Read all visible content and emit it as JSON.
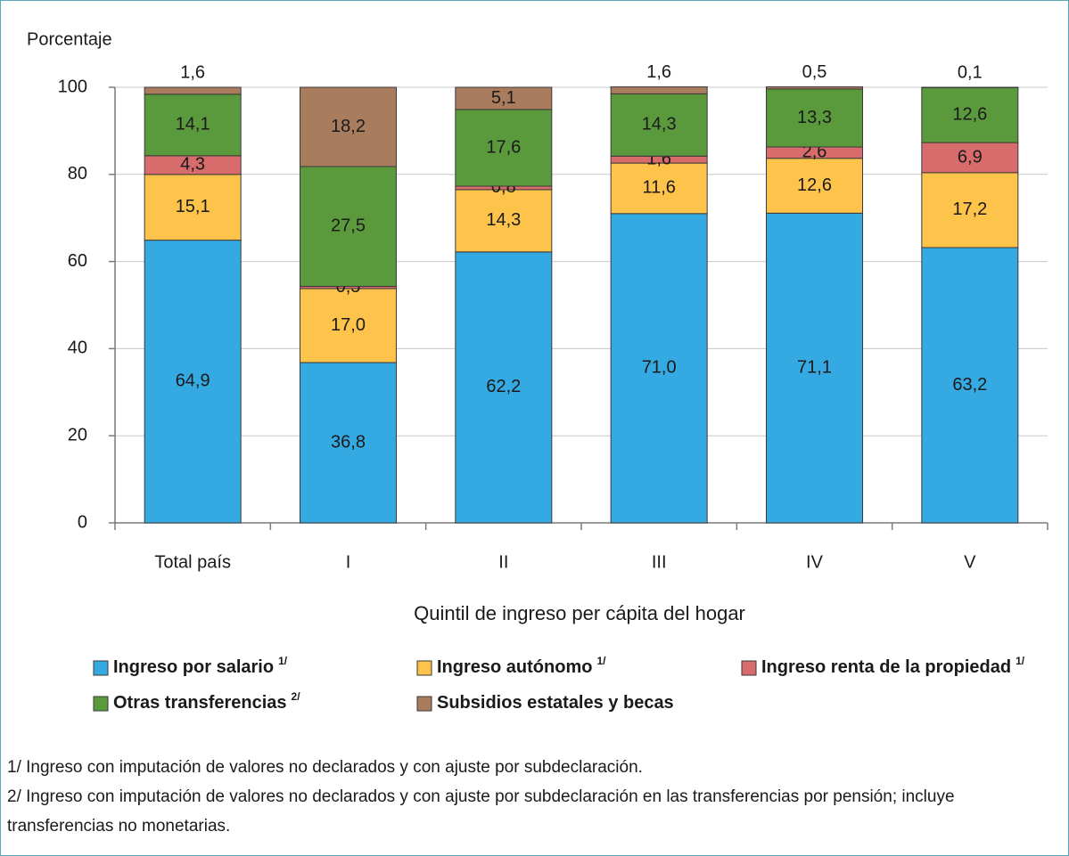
{
  "chart_data": {
    "type": "stacked_bar",
    "ylabel": "Porcentaje",
    "xlabel": "Quintil de ingreso per cápita del hogar",
    "categories": [
      "Total país",
      "I",
      "II",
      "III",
      "IV",
      "V"
    ],
    "ylim": [
      0,
      100
    ],
    "yticks": [
      0,
      20,
      40,
      60,
      80,
      100
    ],
    "grid": true,
    "series": [
      {
        "name": "Ingreso por salario",
        "superscript": "1/",
        "color": "#35a9e1",
        "values": [
          64.9,
          36.8,
          62.2,
          71.0,
          71.1,
          63.2
        ],
        "value_labels": [
          "64,9",
          "36,8",
          "62,2",
          "71,0",
          "71,1",
          "63,2"
        ]
      },
      {
        "name": "Ingreso autónomo",
        "superscript": "1/",
        "color": "#fdc34a",
        "values": [
          15.1,
          17.0,
          14.3,
          11.6,
          12.6,
          17.2
        ],
        "value_labels": [
          "15,1",
          "17,0",
          "14,3",
          "11,6",
          "12,6",
          "17,2"
        ]
      },
      {
        "name": "Ingreso renta de la propiedad",
        "superscript": "1/",
        "color": "#d86b6b",
        "values": [
          4.3,
          0.5,
          0.8,
          1.6,
          2.6,
          6.9
        ],
        "value_labels": [
          "4,3",
          "0,5",
          "0,8",
          "1,6",
          "2,6",
          "6,9"
        ]
      },
      {
        "name": "Otras transferencias",
        "superscript": "2/",
        "color": "#5a9a3c",
        "values": [
          14.1,
          27.5,
          17.6,
          14.3,
          13.3,
          12.6
        ],
        "value_labels": [
          "14,1",
          "27,5",
          "17,6",
          "14,3",
          "13,3",
          "12,6"
        ]
      },
      {
        "name": "Subsidios estatales y becas",
        "color": "#a97c5e",
        "values": [
          1.6,
          18.2,
          5.1,
          1.6,
          0.5,
          0.1
        ],
        "value_labels": [
          "1,6",
          "18,2",
          "5,1",
          "1,6",
          "0,5",
          "0,1"
        ]
      }
    ],
    "notes": [
      "1/ Ingreso con imputación de valores no declarados y con ajuste por subdeclaración.",
      "2/ Ingreso con imputación de valores no declarados y con ajuste por subdeclaración en las transferencias por pensión; incluye transferencias no monetarias."
    ]
  }
}
